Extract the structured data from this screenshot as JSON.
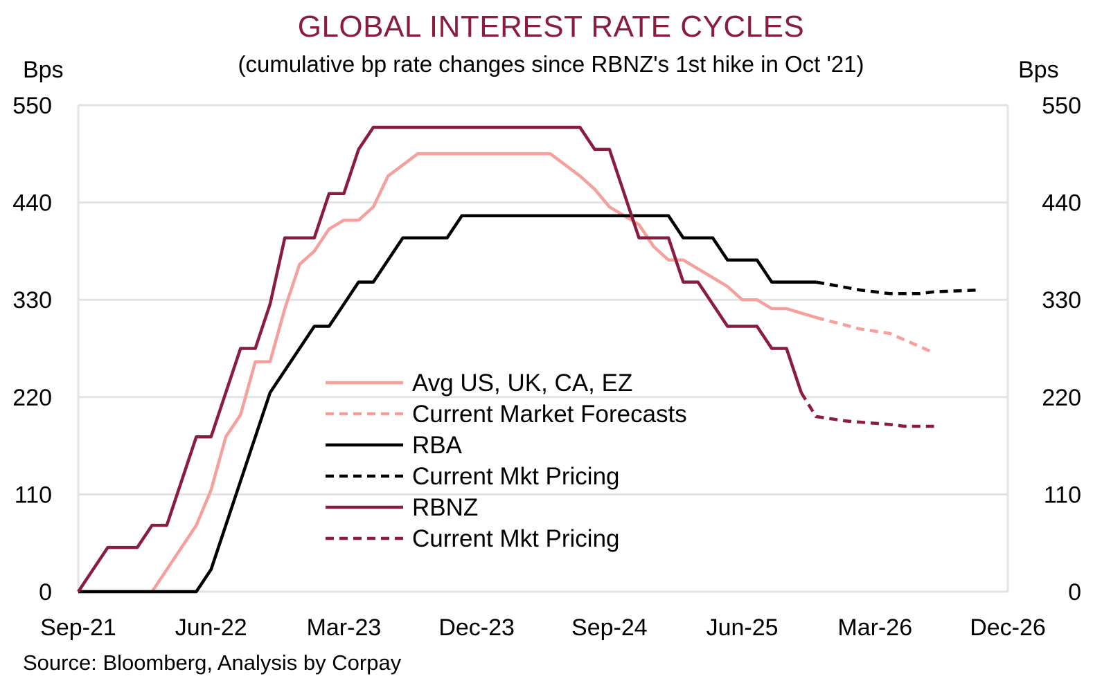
{
  "chart_data": {
    "type": "line",
    "title": "GLOBAL INTEREST RATE CYCLES",
    "subtitle": "(cumulative bp rate changes since RBNZ's 1st hike in Oct '21)",
    "ylabel_left": "Bps",
    "ylabel_right": "Bps",
    "source": "Source: Bloomberg, Analysis by Corpay",
    "x_unit": "months since Sep-21",
    "xlim": [
      0,
      63
    ],
    "ylim": [
      0,
      550
    ],
    "y_ticks": [
      0,
      110,
      220,
      330,
      440,
      550
    ],
    "x_ticks": [
      {
        "label": "Sep-21",
        "x": 0
      },
      {
        "label": "Jun-22",
        "x": 9
      },
      {
        "label": "Mar-23",
        "x": 18
      },
      {
        "label": "Dec-23",
        "x": 27
      },
      {
        "label": "Sep-24",
        "x": 36
      },
      {
        "label": "Jun-25",
        "x": 45
      },
      {
        "label": "Mar-26",
        "x": 54
      },
      {
        "label": "Dec-26",
        "x": 63
      }
    ],
    "grid": true,
    "legend_placement": "center-left",
    "colors": {
      "avg": "#f4a09c",
      "rba": "#000000",
      "rbnz": "#8a1c3e",
      "grid": "#e3e3e3",
      "title": "#8a1c3e"
    },
    "series": [
      {
        "name": "Avg US, UK, CA, EZ",
        "style": "solid",
        "color": "#f4a09c",
        "points": [
          [
            5,
            0
          ],
          [
            7,
            50
          ],
          [
            8,
            75
          ],
          [
            9,
            115
          ],
          [
            10,
            175
          ],
          [
            11,
            200
          ],
          [
            12,
            260
          ],
          [
            13,
            260
          ],
          [
            14,
            320
          ],
          [
            15,
            370
          ],
          [
            16,
            385
          ],
          [
            17,
            410
          ],
          [
            18,
            420
          ],
          [
            19,
            420
          ],
          [
            20,
            435
          ],
          [
            21,
            470
          ],
          [
            23,
            495
          ],
          [
            32,
            495
          ],
          [
            34,
            470
          ],
          [
            35,
            455
          ],
          [
            36,
            435
          ],
          [
            38,
            415
          ],
          [
            39,
            390
          ],
          [
            40,
            375
          ],
          [
            41,
            375
          ],
          [
            43,
            355
          ],
          [
            44,
            345
          ],
          [
            45,
            330
          ],
          [
            46,
            330
          ],
          [
            47,
            320
          ],
          [
            48,
            320
          ],
          [
            50,
            310
          ]
        ]
      },
      {
        "name": "Current Market Forecasts",
        "style": "dashed",
        "color": "#f4a09c",
        "points": [
          [
            50,
            310
          ],
          [
            53,
            297
          ],
          [
            55,
            292
          ],
          [
            58,
            270
          ]
        ]
      },
      {
        "name": "RBA",
        "style": "solid",
        "color": "#000000",
        "points": [
          [
            0,
            0
          ],
          [
            8,
            0
          ],
          [
            9,
            25
          ],
          [
            10,
            75
          ],
          [
            12,
            175
          ],
          [
            13,
            225
          ],
          [
            15,
            275
          ],
          [
            16,
            300
          ],
          [
            17,
            300
          ],
          [
            18,
            325
          ],
          [
            19,
            350
          ],
          [
            20,
            350
          ],
          [
            22,
            400
          ],
          [
            25,
            400
          ],
          [
            26,
            425
          ],
          [
            40,
            425
          ],
          [
            41,
            400
          ],
          [
            43,
            400
          ],
          [
            44,
            375
          ],
          [
            46,
            375
          ],
          [
            47,
            350
          ],
          [
            50,
            350
          ]
        ]
      },
      {
        "name": "Current Mkt Pricing",
        "style": "dashed",
        "color": "#000000",
        "points": [
          [
            50,
            350
          ],
          [
            53,
            341
          ],
          [
            55,
            337
          ],
          [
            57,
            337
          ],
          [
            58,
            339
          ],
          [
            61,
            341
          ]
        ]
      },
      {
        "name": "RBNZ",
        "style": "solid",
        "color": "#8a1c3e",
        "points": [
          [
            0,
            0
          ],
          [
            2,
            50
          ],
          [
            4,
            50
          ],
          [
            5,
            75
          ],
          [
            6,
            75
          ],
          [
            8,
            175
          ],
          [
            9,
            175
          ],
          [
            11,
            275
          ],
          [
            12,
            275
          ],
          [
            13,
            325
          ],
          [
            14,
            400
          ],
          [
            16,
            400
          ],
          [
            17,
            450
          ],
          [
            18,
            450
          ],
          [
            19,
            500
          ],
          [
            20,
            525
          ],
          [
            34,
            525
          ],
          [
            35,
            500
          ],
          [
            36,
            500
          ],
          [
            38,
            400
          ],
          [
            40,
            400
          ],
          [
            41,
            350
          ],
          [
            42,
            350
          ],
          [
            44,
            300
          ],
          [
            46,
            300
          ],
          [
            47,
            275
          ],
          [
            48,
            275
          ],
          [
            49,
            225
          ]
        ]
      },
      {
        "name": "Current Mkt Pricing",
        "style": "dashed",
        "color": "#8a1c3e",
        "points": [
          [
            49,
            225
          ],
          [
            50,
            198
          ],
          [
            52,
            193
          ],
          [
            55,
            189
          ],
          [
            56,
            187
          ],
          [
            58,
            187
          ]
        ]
      }
    ]
  }
}
